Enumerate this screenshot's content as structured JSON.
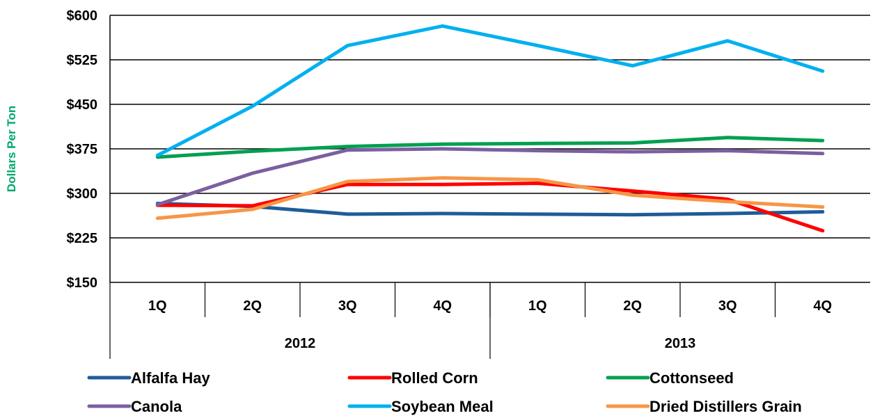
{
  "chart_data": {
    "type": "line",
    "title": "",
    "ylabel": "Dollars Per Ton",
    "ylim": [
      150,
      600
    ],
    "y_ticks": [
      600,
      525,
      450,
      375,
      300,
      225,
      150
    ],
    "y_tick_labels": [
      "$600",
      "$525",
      "$450",
      "$375",
      "$300",
      "$225",
      "$150"
    ],
    "categories": [
      "1Q",
      "2Q",
      "3Q",
      "4Q",
      "1Q",
      "2Q",
      "3Q",
      "4Q"
    ],
    "groups": [
      {
        "label": "2012",
        "span": 4
      },
      {
        "label": "2013",
        "span": 4
      }
    ],
    "grid": true,
    "legend_position": "bottom",
    "series": [
      {
        "name": "Alfalfa Hay",
        "color": "#1F5C99",
        "values": [
          283,
          278,
          265,
          266,
          265,
          264,
          266,
          269
        ]
      },
      {
        "name": "Rolled Corn",
        "color": "#FF0000",
        "values": [
          280,
          279,
          315,
          315,
          317,
          304,
          290,
          237
        ]
      },
      {
        "name": "Cottonseed",
        "color": "#00A050",
        "values": [
          361,
          371,
          379,
          383,
          384,
          385,
          394,
          389
        ]
      },
      {
        "name": "Canola",
        "color": "#7B5FA0",
        "values": [
          281,
          334,
          373,
          375,
          372,
          370,
          372,
          367
        ]
      },
      {
        "name": "Soybean Meal",
        "color": "#00B0F0",
        "values": [
          364,
          447,
          549,
          582,
          549,
          515,
          557,
          506
        ]
      },
      {
        "name": "Dried Distillers Grain",
        "color": "#F79646",
        "values": [
          258,
          273,
          320,
          326,
          323,
          297,
          286,
          277
        ]
      }
    ]
  },
  "ylabel_color": "#00A86B"
}
